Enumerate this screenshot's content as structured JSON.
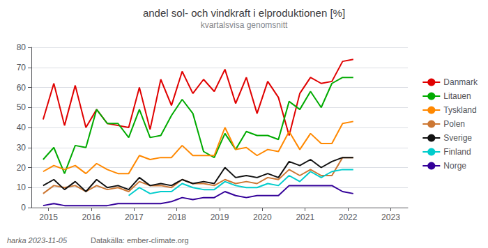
{
  "chart_data": {
    "type": "line",
    "title": "andel sol- och vindkraft i elproduktionen [%]",
    "subtitle": "kvartalsvisa genomsnitt",
    "annotations": [
      "harka 2023-11-05",
      "Datakälla: ember-climate.org"
    ],
    "x": [
      2014.875,
      2015.125,
      2015.375,
      2015.625,
      2015.875,
      2016.125,
      2016.375,
      2016.625,
      2016.875,
      2017.125,
      2017.375,
      2017.625,
      2017.875,
      2018.125,
      2018.375,
      2018.625,
      2018.875,
      2019.125,
      2019.375,
      2019.625,
      2019.875,
      2020.125,
      2020.375,
      2020.625,
      2020.875,
      2021.125,
      2021.375,
      2021.625,
      2021.875,
      2022.125
    ],
    "series": [
      {
        "name": "Danmark",
        "color": "#e00000",
        "values": [
          44,
          62,
          41,
          61,
          40,
          49,
          42,
          41,
          40,
          60,
          39,
          64,
          51,
          68,
          57,
          64,
          58,
          69,
          52,
          65,
          47,
          63,
          55,
          36,
          57,
          65,
          62,
          63,
          73,
          74
        ]
      },
      {
        "name": "Litauen",
        "color": "#00aa00",
        "values": [
          24,
          30,
          17,
          31,
          30,
          49,
          42,
          42,
          35,
          49,
          35,
          36,
          46,
          54,
          47,
          28,
          25,
          37,
          29,
          38,
          36,
          36,
          34,
          53,
          49,
          58,
          50,
          62,
          65,
          65
        ]
      },
      {
        "name": "Tyskland",
        "color": "#ff8800",
        "values": [
          18,
          21,
          19,
          21,
          17,
          22,
          19,
          17,
          17,
          26,
          24,
          25,
          25,
          31,
          26,
          26,
          26,
          40,
          29,
          30,
          26,
          29,
          28,
          38,
          29,
          37,
          32,
          32,
          42,
          43
        ]
      },
      {
        "name": "Polen",
        "color": "#cc7733",
        "values": [
          7,
          11,
          10,
          11,
          8,
          11,
          9,
          10,
          8,
          13,
          11,
          11,
          10,
          14,
          12,
          12,
          11,
          14,
          12,
          13,
          12,
          15,
          14,
          19,
          16,
          19,
          16,
          16,
          25,
          25
        ]
      },
      {
        "name": "Sverige",
        "color": "#111111",
        "values": [
          11,
          14,
          9,
          13,
          8,
          14,
          10,
          11,
          9,
          15,
          11,
          12,
          11,
          14,
          12,
          13,
          12,
          20,
          15,
          16,
          15,
          17,
          15,
          23,
          21,
          24,
          20,
          23,
          25,
          25
        ]
      },
      {
        "name": "Finland",
        "color": "#00cccc",
        "values": [
          null,
          null,
          null,
          null,
          null,
          null,
          null,
          null,
          6,
          10,
          7,
          8,
          8,
          12,
          10,
          9,
          9,
          13,
          11,
          10,
          10,
          12,
          11,
          16,
          13,
          18,
          15,
          18,
          19,
          19
        ]
      },
      {
        "name": "Norge",
        "color": "#330099",
        "values": [
          1,
          2,
          1,
          1,
          1,
          1,
          1,
          2,
          2,
          2,
          2,
          2,
          3,
          5,
          4,
          5,
          5,
          8,
          6,
          5,
          6,
          6,
          6,
          11,
          11,
          11,
          11,
          11,
          8,
          7
        ]
      }
    ],
    "xlim": [
      2014.6,
      2023.4
    ],
    "xticks": [
      2015,
      2016,
      2017,
      2018,
      2019,
      2020,
      2021,
      2022,
      2023
    ],
    "ylim": [
      0,
      80
    ],
    "yticks": [
      0,
      10,
      20,
      30,
      40,
      50,
      60,
      70,
      80
    ],
    "grid": true,
    "legend": "right"
  }
}
